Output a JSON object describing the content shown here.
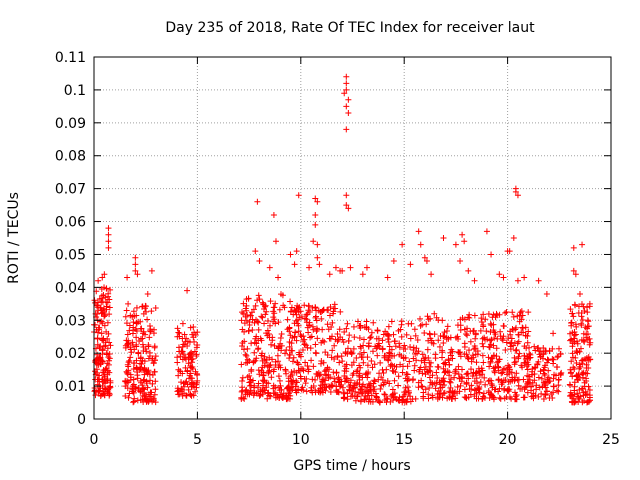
{
  "chart_data": {
    "type": "scatter",
    "title": "Day 235 of 2018, Rate Of TEC Index for receiver laut",
    "xlabel": "GPS time / hours",
    "ylabel": "ROTI / TECUs",
    "xlim": [
      0,
      25
    ],
    "ylim": [
      0,
      0.11
    ],
    "x_ticks": [
      0,
      5,
      10,
      15,
      20,
      25
    ],
    "x_tick_labels": [
      "0",
      "5",
      "10",
      "15",
      "20",
      "25"
    ],
    "y_ticks": [
      0,
      0.01,
      0.02,
      0.03,
      0.04,
      0.05,
      0.06,
      0.07,
      0.08,
      0.09,
      0.1,
      0.11
    ],
    "y_tick_labels": [
      "0",
      "0.01",
      "0.02",
      "0.03",
      "0.04",
      "0.05",
      "0.06",
      "0.07",
      "0.08",
      "0.09",
      "0.1",
      "0.11"
    ],
    "grid": true,
    "marker": "+",
    "color": "#ff0000",
    "clusters": [
      {
        "x_range": [
          0.0,
          0.8
        ],
        "y_range": [
          0.007,
          0.04
        ],
        "count": 170
      },
      {
        "x_range": [
          1.5,
          3.0
        ],
        "y_range": [
          0.005,
          0.035
        ],
        "count": 200
      },
      {
        "x_range": [
          4.0,
          5.0
        ],
        "y_range": [
          0.007,
          0.028
        ],
        "count": 110
      },
      {
        "x_range": [
          7.1,
          9.5
        ],
        "y_range": [
          0.006,
          0.038
        ],
        "count": 260
      },
      {
        "x_range": [
          9.5,
          12.0
        ],
        "y_range": [
          0.008,
          0.035
        ],
        "count": 240
      },
      {
        "x_range": [
          12.0,
          15.5
        ],
        "y_range": [
          0.005,
          0.03
        ],
        "count": 300
      },
      {
        "x_range": [
          15.5,
          18.7
        ],
        "y_range": [
          0.006,
          0.032
        ],
        "count": 260
      },
      {
        "x_range": [
          18.7,
          21.0
        ],
        "y_range": [
          0.006,
          0.033
        ],
        "count": 230
      },
      {
        "x_range": [
          21.0,
          22.6
        ],
        "y_range": [
          0.006,
          0.022
        ],
        "count": 110
      },
      {
        "x_range": [
          23.0,
          24.0
        ],
        "y_range": [
          0.005,
          0.035
        ],
        "count": 150
      }
    ],
    "points": [
      [
        0.7,
        0.058
      ],
      [
        0.7,
        0.056
      ],
      [
        0.7,
        0.054
      ],
      [
        0.7,
        0.052
      ],
      [
        0.5,
        0.044
      ],
      [
        0.2,
        0.042
      ],
      [
        0.4,
        0.043
      ],
      [
        2.0,
        0.049
      ],
      [
        2.0,
        0.047
      ],
      [
        2.0,
        0.045
      ],
      [
        2.1,
        0.044
      ],
      [
        1.6,
        0.043
      ],
      [
        2.6,
        0.038
      ],
      [
        2.8,
        0.045
      ],
      [
        4.5,
        0.039
      ],
      [
        4.3,
        0.029
      ],
      [
        7.9,
        0.066
      ],
      [
        8.7,
        0.062
      ],
      [
        8.8,
        0.054
      ],
      [
        7.8,
        0.051
      ],
      [
        8.0,
        0.048
      ],
      [
        8.5,
        0.046
      ],
      [
        8.9,
        0.043
      ],
      [
        9.5,
        0.05
      ],
      [
        9.7,
        0.047
      ],
      [
        9.9,
        0.068
      ],
      [
        9.8,
        0.051
      ],
      [
        10.4,
        0.046
      ],
      [
        10.7,
        0.067
      ],
      [
        10.8,
        0.066
      ],
      [
        10.7,
        0.062
      ],
      [
        10.7,
        0.059
      ],
      [
        10.6,
        0.054
      ],
      [
        10.8,
        0.053
      ],
      [
        10.8,
        0.049
      ],
      [
        10.9,
        0.047
      ],
      [
        11.4,
        0.044
      ],
      [
        11.7,
        0.046
      ],
      [
        11.9,
        0.045
      ],
      [
        12.2,
        0.104
      ],
      [
        12.2,
        0.102
      ],
      [
        12.2,
        0.1
      ],
      [
        12.1,
        0.099
      ],
      [
        12.3,
        0.097
      ],
      [
        12.2,
        0.095
      ],
      [
        12.3,
        0.093
      ],
      [
        12.2,
        0.088
      ],
      [
        12.2,
        0.068
      ],
      [
        12.2,
        0.065
      ],
      [
        12.3,
        0.064
      ],
      [
        12.0,
        0.045
      ],
      [
        12.4,
        0.046
      ],
      [
        13.2,
        0.046
      ],
      [
        13.0,
        0.044
      ],
      [
        14.5,
        0.048
      ],
      [
        14.2,
        0.043
      ],
      [
        14.9,
        0.053
      ],
      [
        15.3,
        0.047
      ],
      [
        15.7,
        0.057
      ],
      [
        15.8,
        0.053
      ],
      [
        16.0,
        0.049
      ],
      [
        16.1,
        0.048
      ],
      [
        16.3,
        0.044
      ],
      [
        16.9,
        0.055
      ],
      [
        17.5,
        0.053
      ],
      [
        17.8,
        0.056
      ],
      [
        17.9,
        0.054
      ],
      [
        17.7,
        0.048
      ],
      [
        18.1,
        0.045
      ],
      [
        18.4,
        0.042
      ],
      [
        19.0,
        0.057
      ],
      [
        19.2,
        0.05
      ],
      [
        19.6,
        0.044
      ],
      [
        19.8,
        0.043
      ],
      [
        20.0,
        0.051
      ],
      [
        20.1,
        0.051
      ],
      [
        20.3,
        0.055
      ],
      [
        20.4,
        0.07
      ],
      [
        20.4,
        0.069
      ],
      [
        20.5,
        0.068
      ],
      [
        20.5,
        0.042
      ],
      [
        20.8,
        0.043
      ],
      [
        21.5,
        0.042
      ],
      [
        21.9,
        0.038
      ],
      [
        22.2,
        0.026
      ],
      [
        23.2,
        0.052
      ],
      [
        23.6,
        0.053
      ],
      [
        23.2,
        0.045
      ],
      [
        23.3,
        0.044
      ],
      [
        23.5,
        0.038
      ]
    ]
  }
}
